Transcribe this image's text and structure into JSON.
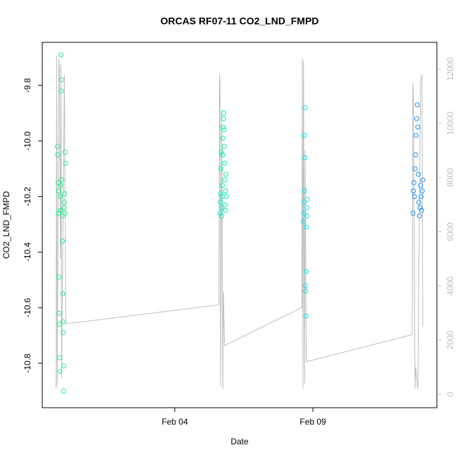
{
  "chart_data": {
    "type": "scatter",
    "title": "ORCAS RF07-11 CO2_LND_FMPD",
    "x_label": "Date",
    "y_label": "CO2_LND_FMPD",
    "xlim": [
      -0.8,
      13.49
    ],
    "xticks": [
      {
        "value": 4,
        "label": "Feb 04"
      },
      {
        "value": 9,
        "label": "Feb 09"
      }
    ],
    "ylim": [
      -10.96,
      -9.645
    ],
    "yticks": [
      -9.8,
      {
        "value": -10,
        "label": "-10.0"
      },
      -10.2,
      -10.4,
      -10.6,
      -10.8
    ],
    "y2lim": [
      -495,
      12990
    ],
    "y2ticks": [
      0,
      2000,
      4000,
      6000,
      8000,
      10000,
      12000
    ],
    "series": [
      {
        "color": "#1ef08c",
        "x": [
          -0.25,
          -0.24,
          -0.23,
          -0.22,
          -0.21,
          -0.2,
          -0.19,
          -0.18,
          -0.17,
          -0.16,
          -0.15,
          -0.14,
          -0.13,
          -0.12,
          -0.11,
          -0.1,
          -0.09,
          -0.08,
          -0.07,
          -0.06,
          -0.05,
          -0.04,
          -0.03,
          -0.02,
          -0.01,
          0,
          0.01,
          0.02,
          0.03,
          0.04
        ],
        "values": [
          -10.02,
          -10.05,
          -10.15,
          -10.18,
          -10.26,
          -10.49,
          -10.62,
          -10.66,
          -10.78,
          -10.83,
          -10.25,
          -10.2,
          -10.16,
          -9.69,
          -9.82,
          -9.78,
          -10.14,
          -10.27,
          -10.36,
          -10.55,
          -10.65,
          -10.69,
          -10.9,
          -10.81,
          -10.24,
          -10.22,
          -10.19,
          -10.26,
          -10.04,
          -10.08
        ]
      },
      {
        "color": "#00f0b4",
        "x": [
          5.64,
          5.65,
          5.66,
          5.67,
          5.68,
          5.69,
          5.7,
          5.71,
          5.72,
          5.73,
          5.74,
          5.75,
          5.76,
          5.77,
          5.78,
          5.79,
          5.8,
          5.81,
          5.82,
          5.83,
          5.84,
          5.85,
          5.86
        ],
        "values": [
          -10.26,
          -10.22,
          -10.19,
          -10.1,
          -10.04,
          -10.24,
          -10.27,
          -10.2,
          -10.16,
          -10.05,
          -9.99,
          -9.95,
          -9.92,
          -9.9,
          -9.96,
          -10.02,
          -10.08,
          -10.14,
          -10.23,
          -10.25,
          -10.18,
          -10.12,
          -10.2
        ]
      },
      {
        "color": "#00e6f0",
        "x": [
          8.66,
          8.67,
          8.68,
          8.69,
          8.7,
          8.71,
          8.72,
          8.73,
          8.74,
          8.75,
          8.76,
          8.77,
          8.78,
          8.79,
          8.8
        ],
        "values": [
          -10.29,
          -10.26,
          -10.22,
          -10.18,
          -9.98,
          -10.06,
          -9.88,
          -10.52,
          -10.54,
          -10.63,
          -10.47,
          -10.31,
          -10.27,
          -10.24,
          -10.21
        ]
      },
      {
        "color": "#1e8cf0",
        "x": [
          12.62,
          12.64,
          12.66,
          12.68,
          12.7,
          12.72,
          12.74,
          12.76,
          12.78,
          12.8,
          12.82,
          12.84,
          12.86,
          12.88,
          12.9,
          12.92,
          12.94,
          12.96,
          12.98
        ],
        "values": [
          -10.26,
          -10.18,
          -10.15,
          -10.2,
          -10.1,
          -10.05,
          -9.98,
          -9.92,
          -9.87,
          -9.95,
          -10.12,
          -10.22,
          -10.27,
          -10.24,
          -10.16,
          -10.2,
          -10.25,
          -10.18,
          -10.14
        ]
      },
      {
        "type": "line",
        "axis": "y2",
        "color": "#bebebe",
        "x": [
          -0.3,
          -0.28,
          -0.26,
          -0.24,
          -0.2,
          -0.18,
          -0.14,
          -0.12,
          -0.1,
          0.0,
          0.05,
          5.6,
          5.62,
          5.64,
          5.66,
          5.7,
          5.72,
          5.74,
          5.76,
          5.8,
          8.6,
          8.62,
          8.64,
          8.66,
          8.7,
          8.72,
          8.76,
          12.6,
          12.62,
          12.64,
          12.7,
          12.72,
          12.8,
          12.9,
          12.95,
          12.98
        ],
        "values": [
          200,
          12500,
          300,
          4000,
          12400,
          12000,
          5000,
          12200,
          600,
          11800,
          2600,
          3300,
          11800,
          11500,
          300,
          10500,
          5000,
          200,
          3800,
          1800,
          3200,
          12400,
          200,
          12300,
          400,
          9000,
          1200,
          2200,
          11500,
          11000,
          200,
          1000,
          200,
          11600,
          11800,
          2500
        ]
      }
    ]
  }
}
